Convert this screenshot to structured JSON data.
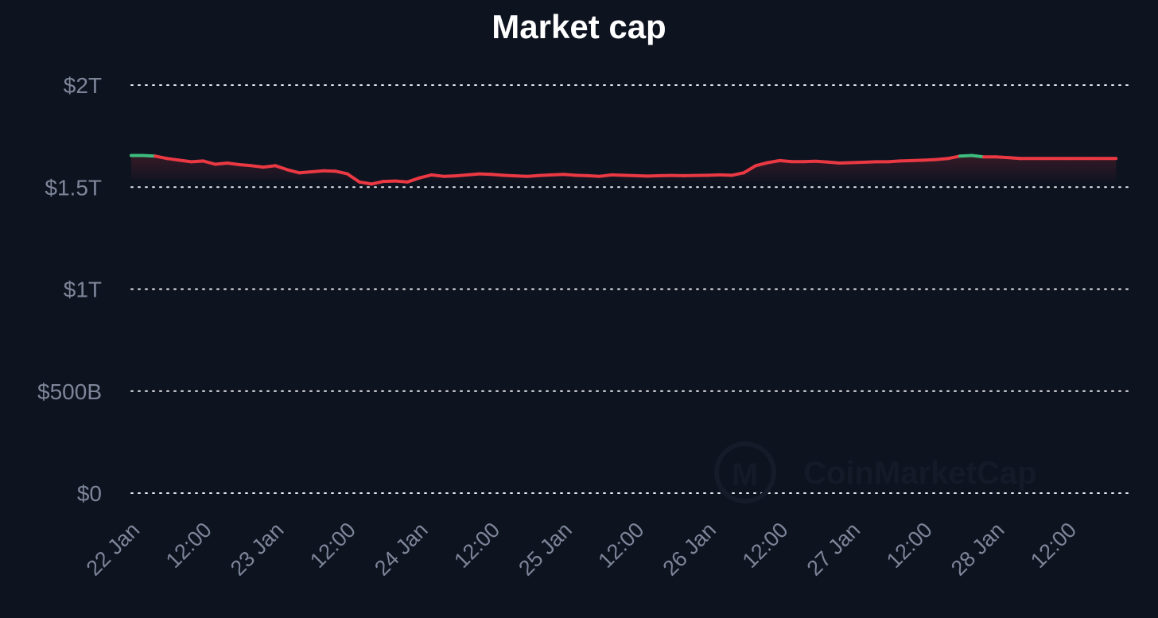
{
  "chart_data": {
    "type": "line",
    "title": "Market cap",
    "xlabel": "",
    "ylabel": "",
    "ylim": [
      0,
      2000000000000
    ],
    "yticks": [
      {
        "value": 2000000000000,
        "label": "$2T"
      },
      {
        "value": 1500000000000,
        "label": "$1.5T"
      },
      {
        "value": 1000000000000,
        "label": "$1T"
      },
      {
        "value": 500000000000,
        "label": "$500B"
      },
      {
        "value": 0,
        "label": "$0"
      }
    ],
    "xlim": [
      "2024-01-22T00:00",
      "2024-01-28T20:30"
    ],
    "xticks": [
      {
        "x": "2024-01-22T00:00",
        "label": "22 Jan"
      },
      {
        "x": "2024-01-22T12:00",
        "label": "12:00"
      },
      {
        "x": "2024-01-23T00:00",
        "label": "23 Jan"
      },
      {
        "x": "2024-01-23T12:00",
        "label": "12:00"
      },
      {
        "x": "2024-01-24T00:00",
        "label": "24 Jan"
      },
      {
        "x": "2024-01-24T12:00",
        "label": "12:00"
      },
      {
        "x": "2024-01-25T00:00",
        "label": "25 Jan"
      },
      {
        "x": "2024-01-25T12:00",
        "label": "12:00"
      },
      {
        "x": "2024-01-26T00:00",
        "label": "26 Jan"
      },
      {
        "x": "2024-01-26T12:00",
        "label": "12:00"
      },
      {
        "x": "2024-01-27T00:00",
        "label": "27 Jan"
      },
      {
        "x": "2024-01-27T12:00",
        "label": "12:00"
      },
      {
        "x": "2024-01-28T00:00",
        "label": "28 Jan"
      },
      {
        "x": "2024-01-28T12:00",
        "label": "12:00"
      }
    ],
    "grid": true,
    "baseline": 1650000000000,
    "colors": {
      "above": "#3dbd7d",
      "below": "#ea3943",
      "grid": "#ffffff",
      "tick": "#7d8699",
      "background": "#0e1320"
    },
    "series": [
      {
        "x": [
          "2024-01-22T00:00",
          "2024-01-22T02:00",
          "2024-01-22T04:00",
          "2024-01-22T06:00",
          "2024-01-22T08:00",
          "2024-01-22T10:00",
          "2024-01-22T12:00",
          "2024-01-22T14:00",
          "2024-01-22T16:00",
          "2024-01-22T18:00",
          "2024-01-22T20:00",
          "2024-01-22T22:00",
          "2024-01-23T00:00",
          "2024-01-23T02:00",
          "2024-01-23T04:00",
          "2024-01-23T06:00",
          "2024-01-23T08:00",
          "2024-01-23T10:00",
          "2024-01-23T12:00",
          "2024-01-23T14:00",
          "2024-01-23T16:00",
          "2024-01-23T18:00",
          "2024-01-23T20:00",
          "2024-01-23T22:00",
          "2024-01-24T00:00",
          "2024-01-24T02:00",
          "2024-01-24T04:00",
          "2024-01-24T06:00",
          "2024-01-24T08:00",
          "2024-01-24T10:00",
          "2024-01-24T12:00",
          "2024-01-24T14:00",
          "2024-01-24T16:00",
          "2024-01-24T18:00",
          "2024-01-24T20:00",
          "2024-01-24T22:00",
          "2024-01-25T00:00",
          "2024-01-25T02:00",
          "2024-01-25T04:00",
          "2024-01-25T06:00",
          "2024-01-25T08:00",
          "2024-01-25T10:00",
          "2024-01-25T12:00",
          "2024-01-25T14:00",
          "2024-01-25T16:00",
          "2024-01-25T18:00",
          "2024-01-25T20:00",
          "2024-01-25T22:00",
          "2024-01-26T00:00",
          "2024-01-26T02:00",
          "2024-01-26T04:00",
          "2024-01-26T06:00",
          "2024-01-26T08:00",
          "2024-01-26T10:00",
          "2024-01-26T12:00",
          "2024-01-26T14:00",
          "2024-01-26T16:00",
          "2024-01-26T18:00",
          "2024-01-26T20:00",
          "2024-01-26T22:00",
          "2024-01-27T00:00",
          "2024-01-27T02:00",
          "2024-01-27T04:00",
          "2024-01-27T06:00",
          "2024-01-27T08:00",
          "2024-01-27T10:00",
          "2024-01-27T12:00",
          "2024-01-27T14:00",
          "2024-01-27T16:00",
          "2024-01-27T18:00",
          "2024-01-27T20:00",
          "2024-01-27T22:00",
          "2024-01-28T00:00",
          "2024-01-28T02:00",
          "2024-01-28T04:00",
          "2024-01-28T06:00",
          "2024-01-28T08:00",
          "2024-01-28T10:00",
          "2024-01-28T12:00",
          "2024-01-28T14:00",
          "2024-01-28T16:00",
          "2024-01-28T18:00",
          "2024-01-28T20:00"
        ],
        "values": [
          1655000000000,
          1655000000000,
          1652000000000,
          1640000000000,
          1632000000000,
          1624000000000,
          1628000000000,
          1612000000000,
          1618000000000,
          1610000000000,
          1605000000000,
          1598000000000,
          1605000000000,
          1585000000000,
          1570000000000,
          1575000000000,
          1580000000000,
          1578000000000,
          1565000000000,
          1525000000000,
          1515000000000,
          1528000000000,
          1530000000000,
          1525000000000,
          1545000000000,
          1560000000000,
          1553000000000,
          1555000000000,
          1560000000000,
          1565000000000,
          1562000000000,
          1558000000000,
          1555000000000,
          1553000000000,
          1557000000000,
          1560000000000,
          1562000000000,
          1558000000000,
          1556000000000,
          1553000000000,
          1560000000000,
          1558000000000,
          1556000000000,
          1554000000000,
          1556000000000,
          1557000000000,
          1556000000000,
          1557000000000,
          1558000000000,
          1560000000000,
          1558000000000,
          1570000000000,
          1605000000000,
          1620000000000,
          1630000000000,
          1625000000000,
          1625000000000,
          1627000000000,
          1623000000000,
          1618000000000,
          1620000000000,
          1622000000000,
          1624000000000,
          1624000000000,
          1628000000000,
          1630000000000,
          1632000000000,
          1635000000000,
          1640000000000,
          1652000000000,
          1655000000000,
          1648000000000,
          1648000000000,
          1645000000000,
          1640000000000,
          1640000000000,
          1640000000000,
          1640000000000,
          1640000000000,
          1640000000000,
          1640000000000,
          1640000000000,
          1640000000000
        ]
      }
    ]
  }
}
